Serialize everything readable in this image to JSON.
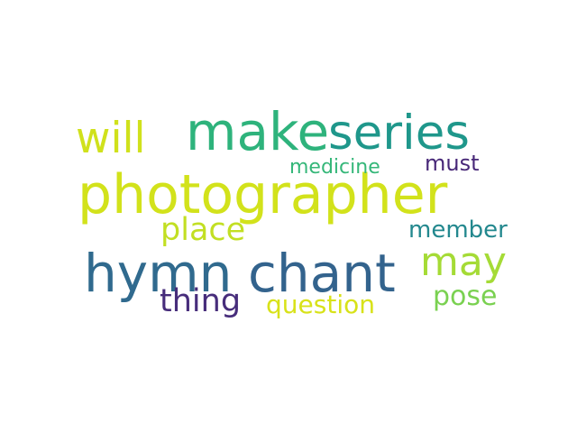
{
  "words": [
    {
      "id": "photographer",
      "text": "photographer",
      "color": "#d2e21b"
    },
    {
      "id": "hymn",
      "text": "hymn",
      "color": "#306a8e"
    },
    {
      "id": "chant",
      "text": "chant",
      "color": "#33638d"
    },
    {
      "id": "make",
      "text": "make",
      "color": "#2eb37c"
    },
    {
      "id": "series",
      "text": "series",
      "color": "#1f978b"
    },
    {
      "id": "will",
      "text": "will",
      "color": "#d0e11c"
    },
    {
      "id": "may",
      "text": "may",
      "color": "#a5db36"
    },
    {
      "id": "place",
      "text": "place",
      "color": "#c2df23"
    },
    {
      "id": "thing",
      "text": "thing",
      "color": "#472d7b"
    },
    {
      "id": "pose",
      "text": "pose",
      "color": "#7ad151"
    },
    {
      "id": "question",
      "text": "question",
      "color": "#d8e219"
    },
    {
      "id": "member",
      "text": "member",
      "color": "#23888e"
    },
    {
      "id": "must",
      "text": "must",
      "color": "#482878"
    },
    {
      "id": "medicine",
      "text": "medicine",
      "color": "#35b779"
    }
  ]
}
